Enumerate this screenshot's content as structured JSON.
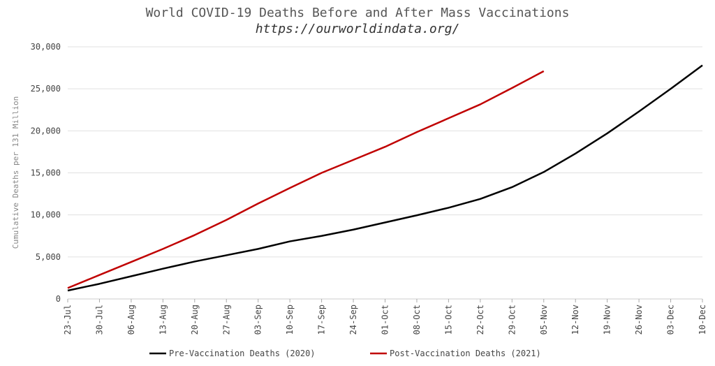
{
  "chart_data": {
    "type": "line",
    "title": "World COVID-19 Deaths Before and After Mass Vaccinations",
    "subtitle": "https://ourworldindata.org/",
    "y_label": "Cumulative Deaths per 131 Million",
    "categories": [
      "23-Jul",
      "30-Jul",
      "06-Aug",
      "13-Aug",
      "20-Aug",
      "27-Aug",
      "03-Sep",
      "10-Sep",
      "17-Sep",
      "24-Sep",
      "01-Oct",
      "08-Oct",
      "15-Oct",
      "22-Oct",
      "29-Oct",
      "05-Nov",
      "12-Nov",
      "19-Nov",
      "26-Nov",
      "03-Dec",
      "10-Dec"
    ],
    "series": [
      {
        "name": "Pre-Vaccination Deaths (2020)",
        "color": "#000000",
        "values": [
          1000,
          1800,
          2700,
          3600,
          4450,
          5200,
          5950,
          6850,
          7500,
          8250,
          9100,
          9950,
          10850,
          11900,
          13300,
          15100,
          17300,
          19700,
          22300,
          25000,
          27800
        ]
      },
      {
        "name": "Post-Vaccination Deaths (2021)",
        "color": "#c00000",
        "values": [
          1300,
          2850,
          4400,
          5950,
          7600,
          9400,
          11350,
          13200,
          15000,
          16550,
          18100,
          19850,
          21500,
          23150,
          25100,
          27100,
          null,
          null,
          null,
          null,
          null
        ]
      }
    ],
    "ylim": [
      0,
      30000
    ],
    "yticks": [
      0,
      {
        "value": 5000,
        "label": "5,000"
      },
      {
        "value": 10000,
        "label": "10,000"
      },
      {
        "value": 15000,
        "label": "15,000"
      },
      {
        "value": 20000,
        "label": "20,000"
      },
      {
        "value": 25000,
        "label": "25,000"
      },
      {
        "value": 30000,
        "label": "30,000"
      }
    ],
    "grid": true,
    "legend": "bottom"
  }
}
